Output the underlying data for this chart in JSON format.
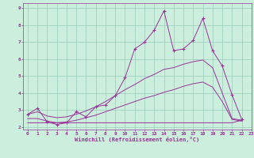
{
  "xlabel": "Windchill (Refroidissement éolien,°C)",
  "xlim": [
    -0.5,
    23
  ],
  "ylim": [
    1.85,
    9.3
  ],
  "yticks": [
    2,
    3,
    4,
    5,
    6,
    7,
    8,
    9
  ],
  "xticks": [
    0,
    1,
    2,
    3,
    4,
    5,
    6,
    7,
    8,
    9,
    10,
    11,
    12,
    13,
    14,
    15,
    16,
    17,
    18,
    19,
    20,
    21,
    22,
    23
  ],
  "bg_color": "#cceedd",
  "line_color": "#993399",
  "grid_color": "#99ccbb",
  "series": [
    {
      "x": [
        0,
        1,
        2,
        3,
        4,
        5,
        6,
        7,
        8,
        9,
        10,
        11,
        12,
        13,
        14,
        15,
        16,
        17,
        18,
        19,
        20,
        21,
        22
      ],
      "y": [
        2.75,
        3.1,
        2.3,
        2.15,
        2.25,
        2.9,
        2.6,
        3.2,
        3.3,
        3.85,
        4.9,
        6.6,
        7.0,
        7.7,
        8.85,
        6.5,
        6.6,
        7.1,
        8.4,
        6.5,
        5.6,
        3.9,
        2.45
      ],
      "marker": "+"
    },
    {
      "x": [
        0,
        1,
        2,
        3,
        4,
        5,
        6,
        7,
        8,
        9,
        10,
        11,
        12,
        13,
        14,
        15,
        16,
        17,
        18,
        19,
        20,
        21,
        22
      ],
      "y": [
        2.75,
        2.9,
        2.65,
        2.55,
        2.6,
        2.75,
        2.95,
        3.2,
        3.5,
        3.85,
        4.2,
        4.5,
        4.85,
        5.1,
        5.4,
        5.5,
        5.7,
        5.85,
        5.95,
        5.5,
        4.0,
        2.5,
        2.4
      ],
      "marker": null
    },
    {
      "x": [
        0,
        1,
        2,
        3,
        4,
        5,
        6,
        7,
        8,
        9,
        10,
        11,
        12,
        13,
        14,
        15,
        16,
        17,
        18,
        19,
        20,
        21,
        22
      ],
      "y": [
        2.5,
        2.5,
        2.35,
        2.25,
        2.3,
        2.4,
        2.55,
        2.7,
        2.9,
        3.1,
        3.3,
        3.5,
        3.7,
        3.85,
        4.05,
        4.2,
        4.4,
        4.55,
        4.65,
        4.35,
        3.5,
        2.45,
        2.35
      ],
      "marker": null
    },
    {
      "x": [
        0,
        10,
        21,
        22
      ],
      "y": [
        2.25,
        2.25,
        2.25,
        2.4
      ],
      "marker": null
    }
  ]
}
